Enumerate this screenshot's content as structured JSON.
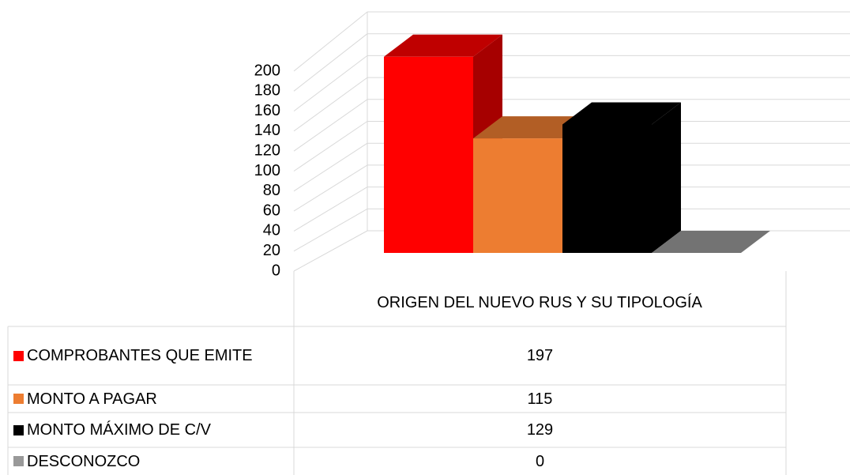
{
  "chart_data": {
    "type": "bar3d",
    "categories": [
      "ORIGEN DEL NUEVO RUS Y SU TIPOLOGÍA"
    ],
    "series": [
      {
        "name": "COMPROBANTES QUE EMITE",
        "color": "#ff0000",
        "values": [
          197
        ]
      },
      {
        "name": "MONTO A PAGAR",
        "color": "#ed7d31",
        "values": [
          115
        ]
      },
      {
        "name": "MONTO MÁXIMO DE C/V",
        "color": "#000000",
        "values": [
          129
        ]
      },
      {
        "name": "DESCONOZCO",
        "color": "#999999",
        "values": [
          0
        ]
      }
    ],
    "ylim": [
      0,
      200
    ],
    "yticks": [
      0,
      20,
      40,
      60,
      80,
      100,
      120,
      140,
      160,
      180,
      200
    ],
    "grid": true,
    "legend": "table"
  }
}
